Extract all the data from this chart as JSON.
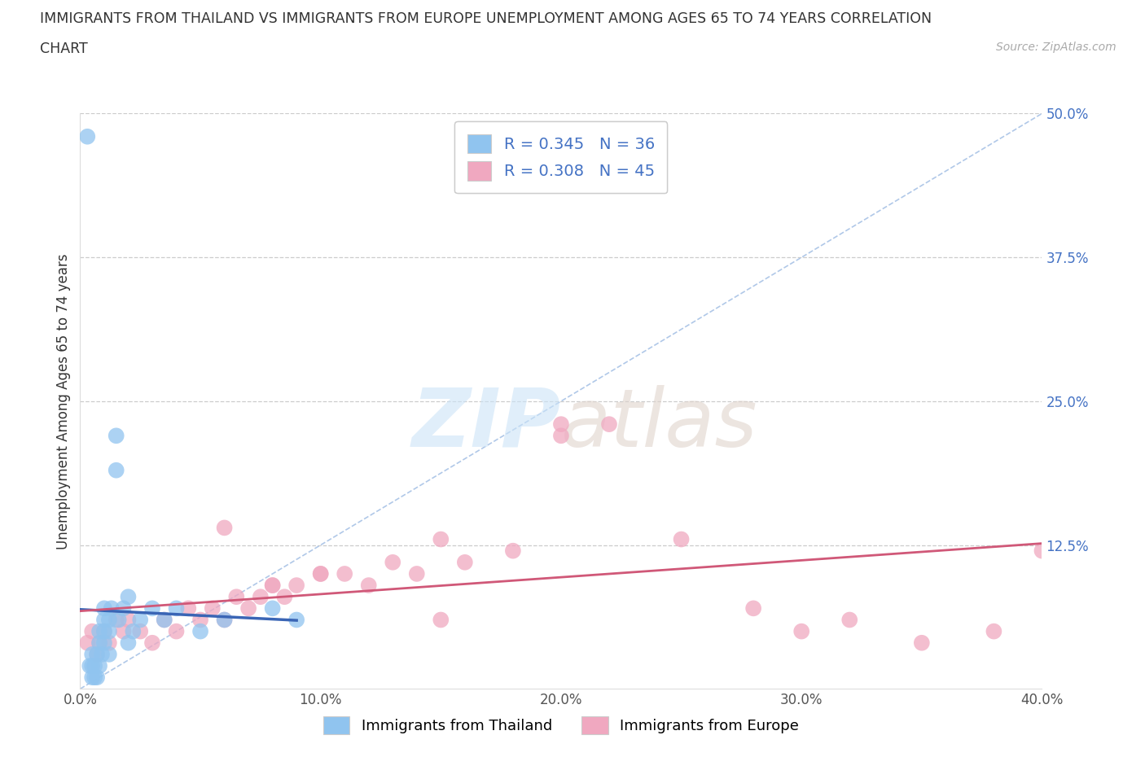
{
  "title_line1": "IMMIGRANTS FROM THAILAND VS IMMIGRANTS FROM EUROPE UNEMPLOYMENT AMONG AGES 65 TO 74 YEARS CORRELATION",
  "title_line2": "CHART",
  "source": "Source: ZipAtlas.com",
  "ylabel": "Unemployment Among Ages 65 to 74 years",
  "xlim": [
    0.0,
    0.4
  ],
  "ylim": [
    0.0,
    0.5
  ],
  "xticks": [
    0.0,
    0.1,
    0.2,
    0.3,
    0.4
  ],
  "xticklabels": [
    "0.0%",
    "10.0%",
    "20.0%",
    "30.0%",
    "40.0%"
  ],
  "yticks": [
    0.0,
    0.125,
    0.25,
    0.375,
    0.5
  ],
  "yticklabels": [
    "",
    "12.5%",
    "25.0%",
    "37.5%",
    "50.0%"
  ],
  "R_thailand": 0.345,
  "N_thailand": 36,
  "R_europe": 0.308,
  "N_europe": 45,
  "color_thailand": "#90c4ef",
  "color_europe": "#f0a8c0",
  "line_color_thailand": "#3a65b5",
  "line_color_europe": "#d05878",
  "diag_color": "#b0c8e8",
  "legend_label_thailand": "Immigrants from Thailand",
  "legend_label_europe": "Immigrants from Europe",
  "thailand_x": [
    0.003,
    0.004,
    0.005,
    0.005,
    0.005,
    0.006,
    0.006,
    0.007,
    0.007,
    0.008,
    0.008,
    0.008,
    0.009,
    0.01,
    0.01,
    0.01,
    0.01,
    0.012,
    0.012,
    0.013,
    0.015,
    0.015,
    0.016,
    0.018,
    0.02,
    0.02,
    0.022,
    0.025,
    0.03,
    0.035,
    0.04,
    0.05,
    0.06,
    0.08,
    0.09,
    0.012
  ],
  "thailand_y": [
    0.48,
    0.02,
    0.01,
    0.02,
    0.03,
    0.01,
    0.02,
    0.03,
    0.01,
    0.04,
    0.05,
    0.02,
    0.03,
    0.07,
    0.05,
    0.06,
    0.04,
    0.06,
    0.05,
    0.07,
    0.22,
    0.19,
    0.06,
    0.07,
    0.08,
    0.04,
    0.05,
    0.06,
    0.07,
    0.06,
    0.07,
    0.05,
    0.06,
    0.07,
    0.06,
    0.03
  ],
  "europe_x": [
    0.003,
    0.005,
    0.007,
    0.008,
    0.01,
    0.012,
    0.015,
    0.018,
    0.02,
    0.025,
    0.03,
    0.035,
    0.04,
    0.045,
    0.05,
    0.055,
    0.06,
    0.065,
    0.07,
    0.075,
    0.08,
    0.085,
    0.09,
    0.1,
    0.11,
    0.12,
    0.13,
    0.14,
    0.15,
    0.16,
    0.18,
    0.2,
    0.22,
    0.25,
    0.28,
    0.3,
    0.32,
    0.35,
    0.38,
    0.4,
    0.06,
    0.08,
    0.1,
    0.15,
    0.2
  ],
  "europe_y": [
    0.04,
    0.05,
    0.03,
    0.04,
    0.05,
    0.04,
    0.06,
    0.05,
    0.06,
    0.05,
    0.04,
    0.06,
    0.05,
    0.07,
    0.06,
    0.07,
    0.06,
    0.08,
    0.07,
    0.08,
    0.09,
    0.08,
    0.09,
    0.1,
    0.1,
    0.09,
    0.11,
    0.1,
    0.13,
    0.11,
    0.12,
    0.23,
    0.23,
    0.13,
    0.07,
    0.05,
    0.06,
    0.04,
    0.05,
    0.12,
    0.14,
    0.09,
    0.1,
    0.06,
    0.22
  ]
}
